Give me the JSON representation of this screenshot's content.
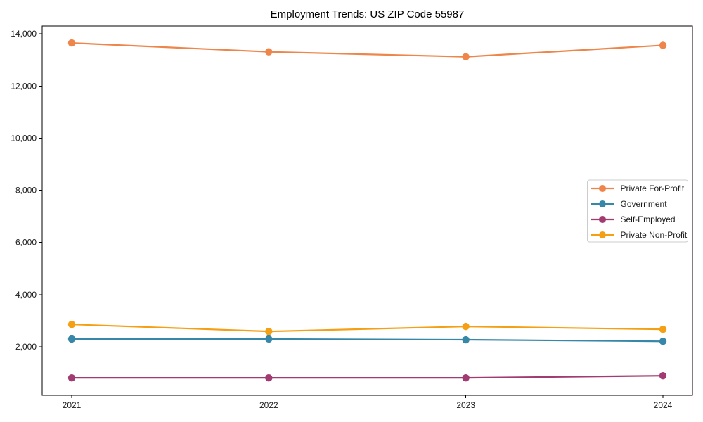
{
  "chart_data": {
    "type": "line",
    "title": "Employment Trends: US ZIP Code 55987",
    "xlabel": "",
    "ylabel": "",
    "categories": [
      "2021",
      "2022",
      "2023",
      "2024"
    ],
    "series": [
      {
        "name": "Private For-Profit",
        "color": "#ee854a",
        "values": [
          13650,
          13310,
          13120,
          13560
        ]
      },
      {
        "name": "Government",
        "color": "#3787a8",
        "values": [
          2300,
          2300,
          2270,
          2210
        ]
      },
      {
        "name": "Self-Employed",
        "color": "#a23b72",
        "values": [
          810,
          810,
          810,
          890
        ]
      },
      {
        "name": "Private Non-Profit",
        "color": "#f5a014",
        "values": [
          2860,
          2590,
          2780,
          2670
        ]
      }
    ],
    "ylim": [
      140,
      14300
    ],
    "yticks": [
      2000,
      4000,
      6000,
      8000,
      10000,
      12000,
      14000
    ],
    "ytick_labels": [
      "2,000",
      "4,000",
      "6,000",
      "8,000",
      "10,000",
      "12,000",
      "14,000"
    ],
    "grid": false,
    "legend_position": "right-center",
    "axis_color": "#000000",
    "text_color": "#1a1a1a",
    "legend_border_color": "#cccccc",
    "plot_background": "#ffffff"
  }
}
